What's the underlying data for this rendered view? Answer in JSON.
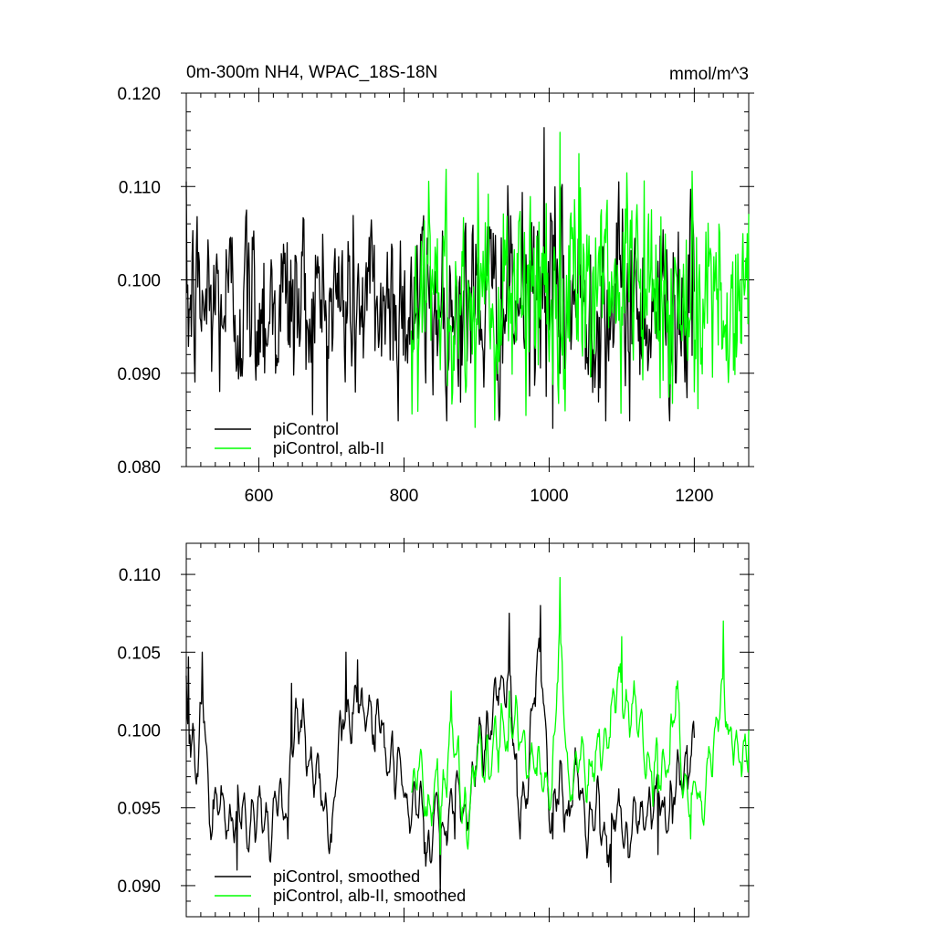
{
  "chart_data": [
    {
      "type": "line",
      "title_left": "0m-300m NH4, WPAC_18S-18N",
      "title_right": "mmol/m^3",
      "xlabel": "",
      "ylabel": "",
      "xlim": [
        500,
        1275
      ],
      "ylim": [
        0.08,
        0.12
      ],
      "x_ticks": [
        600,
        800,
        1000,
        1200
      ],
      "x_tick_labels": [
        "600",
        "800",
        "1000",
        "1200"
      ],
      "y_ticks": [
        0.08,
        0.09,
        0.1,
        0.11,
        0.12
      ],
      "y_tick_labels": [
        "0.080",
        "0.090",
        "0.100",
        "0.110",
        "0.120"
      ],
      "legend_position": "bottom-left",
      "series": [
        {
          "name": "piControl",
          "color": "#000000",
          "x_start": 500,
          "x_end": 1200,
          "count": 701,
          "mean": 0.0975,
          "std": 0.005,
          "min": 0.0841,
          "max": 0.1163,
          "min_year": 1005,
          "max_year": 993
        },
        {
          "name": "piControl, alb-II",
          "color": "#00ff00",
          "x_start": 810,
          "x_end": 1275,
          "count": 466,
          "mean": 0.0985,
          "std": 0.0055,
          "min": 0.0842,
          "max": 0.1158,
          "min_year": 898,
          "max_year": 1015
        }
      ]
    },
    {
      "type": "line",
      "xlabel": "",
      "ylabel": "",
      "xlim": [
        500,
        1275
      ],
      "ylim": [
        0.088,
        0.112
      ],
      "x_ticks": [
        600,
        800,
        1000,
        1200
      ],
      "y_ticks": [
        0.09,
        0.095,
        0.1,
        0.105,
        0.11
      ],
      "y_tick_labels": [
        "0.090",
        "0.095",
        "0.100",
        "0.105",
        "0.110"
      ],
      "legend_position": "bottom-left",
      "series": [
        {
          "name": "piControl, smoothed",
          "color": "#000000",
          "x_start": 500,
          "x_end": 1200,
          "mean": 0.0975,
          "key_points": [
            [
              500,
              0.1035
            ],
            [
              503,
              0.1047
            ],
            [
              515,
              0.0972
            ],
            [
              522,
              0.105
            ],
            [
              535,
              0.0932
            ],
            [
              555,
              0.093
            ],
            [
              570,
              0.091
            ],
            [
              640,
              0.093
            ],
            [
              645,
              0.103
            ],
            [
              700,
              0.0928
            ],
            [
              720,
              0.105
            ],
            [
              736,
              0.1045
            ],
            [
              850,
              0.0895
            ],
            [
              870,
              0.093
            ],
            [
              945,
              0.1075
            ],
            [
              960,
              0.093
            ],
            [
              988,
              0.108
            ],
            [
              1005,
              0.093
            ],
            [
              1025,
              0.0945
            ],
            [
              1085,
              0.0902
            ],
            [
              1150,
              0.092
            ],
            [
              1170,
              0.094
            ],
            [
              1190,
              0.099
            ],
            [
              1200,
              0.0995
            ]
          ]
        },
        {
          "name": "piControl, alb-II, smoothed",
          "color": "#00ff00",
          "x_start": 810,
          "x_end": 1275,
          "mean": 0.0985,
          "key_points": [
            [
              810,
              0.096
            ],
            [
              850,
              0.092
            ],
            [
              865,
              0.1025
            ],
            [
              880,
              0.094
            ],
            [
              945,
              0.1025
            ],
            [
              1000,
              0.095
            ],
            [
              1015,
              0.1098
            ],
            [
              1030,
              0.0955
            ],
            [
              1060,
              0.097
            ],
            [
              1100,
              0.106
            ],
            [
              1150,
              0.096
            ],
            [
              1175,
              0.1028
            ],
            [
              1185,
              0.096
            ],
            [
              1195,
              0.093
            ],
            [
              1225,
              0.097
            ],
            [
              1240,
              0.107
            ],
            [
              1255,
              0.0985
            ],
            [
              1265,
              0.097
            ],
            [
              1275,
              0.1
            ]
          ]
        }
      ]
    }
  ]
}
